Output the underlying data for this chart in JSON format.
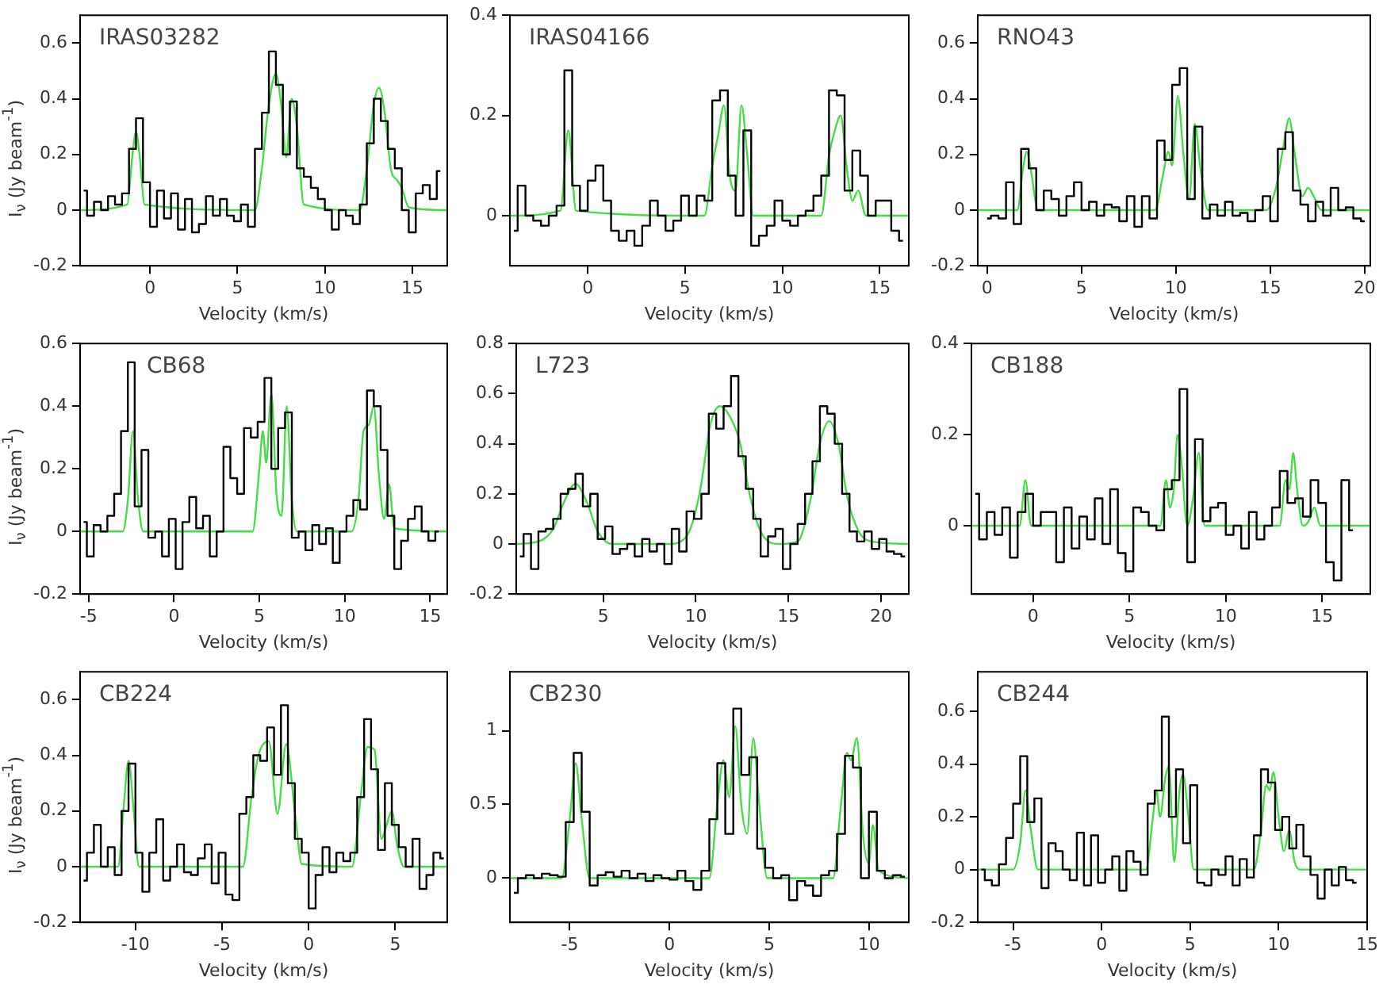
{
  "chart_data": [
    {
      "type": "step",
      "title": "IRAS03282",
      "xlabel": "Velocity (km/s)",
      "ylabel": "I$_{ν}$ (Jy beam$^{-1}$)",
      "xlim": [
        -4,
        17
      ],
      "xticks": [
        0,
        5,
        10,
        15
      ],
      "ylim": [
        -0.2,
        0.7
      ],
      "yticks": [
        -0.2,
        0,
        0.2,
        0.4,
        0.6
      ],
      "series": [
        {
          "type": "step",
          "color": "#000000",
          "x": [
            -3.8,
            -3.4,
            -3.0,
            -2.6,
            -2.2,
            -1.8,
            -1.4,
            -1.0,
            -0.6,
            -0.2,
            0.2,
            0.6,
            1.0,
            1.4,
            1.8,
            2.2,
            2.6,
            3.0,
            3.4,
            3.8,
            4.2,
            4.6,
            5.0,
            5.4,
            5.8,
            6.2,
            6.6,
            7.0,
            7.4,
            7.8,
            8.2,
            8.6,
            9.0,
            9.4,
            9.8,
            10.2,
            10.6,
            11.0,
            11.4,
            11.8,
            12.2,
            12.6,
            13.0,
            13.4,
            13.8,
            14.2,
            14.6,
            15.0,
            15.4,
            15.8,
            16.2,
            16.6
          ],
          "values": [
            0.07,
            -0.02,
            0.03,
            0.0,
            0.05,
            0.02,
            0.06,
            0.22,
            0.33,
            0.1,
            -0.06,
            0.07,
            -0.03,
            0.06,
            -0.07,
            0.04,
            -0.08,
            -0.05,
            0.05,
            -0.02,
            0.04,
            -0.02,
            -0.04,
            0.02,
            -0.06,
            0.22,
            0.35,
            0.57,
            0.45,
            0.2,
            0.39,
            0.15,
            0.12,
            0.08,
            0.04,
            0.0,
            -0.07,
            0.0,
            -0.02,
            -0.05,
            0.02,
            0.24,
            0.4,
            0.32,
            0.22,
            0.15,
            0.0,
            -0.08,
            0.06,
            0.09,
            0.04,
            0.14
          ]
        },
        {
          "type": "line",
          "color": "#44dd44",
          "x": [
            -4,
            -1.3,
            -1.0,
            -0.8,
            -0.6,
            -0.3,
            6.0,
            6.4,
            6.8,
            7.2,
            7.5,
            7.8,
            8.1,
            8.4,
            8.8,
            12.0,
            12.4,
            12.8,
            13.1,
            13.4,
            13.8,
            14.1,
            14.4,
            14.8,
            17
          ],
          "values": [
            0,
            0.02,
            0.2,
            0.28,
            0.2,
            0.02,
            0.0,
            0.15,
            0.38,
            0.49,
            0.38,
            0.19,
            0.4,
            0.3,
            0.02,
            0.0,
            0.15,
            0.38,
            0.44,
            0.36,
            0.14,
            0.11,
            0.08,
            0.01,
            0
          ]
        }
      ]
    },
    {
      "type": "step",
      "title": "IRAS04166",
      "xlabel": "Velocity (km/s)",
      "xlim": [
        -4,
        16.5
      ],
      "xticks": [
        0,
        5,
        10,
        15
      ],
      "ylim": [
        -0.1,
        0.4
      ],
      "yticks": [
        0,
        0.2,
        0.4
      ],
      "series": [
        {
          "type": "step",
          "color": "#000000",
          "x": [
            -3.8,
            -3.4,
            -3.0,
            -2.6,
            -2.2,
            -1.8,
            -1.4,
            -1.0,
            -0.6,
            -0.2,
            0.2,
            0.6,
            1.0,
            1.4,
            1.8,
            2.2,
            2.6,
            3.0,
            3.4,
            3.8,
            4.2,
            4.6,
            5.0,
            5.4,
            5.8,
            6.2,
            6.6,
            7.0,
            7.4,
            7.8,
            8.2,
            8.6,
            9.0,
            9.4,
            9.8,
            10.2,
            10.6,
            11.0,
            11.4,
            11.8,
            12.2,
            12.6,
            13.0,
            13.4,
            13.8,
            14.2,
            14.6,
            15.0,
            15.4,
            15.8,
            16.2
          ],
          "values": [
            -0.03,
            0.06,
            0.0,
            -0.01,
            -0.02,
            0.0,
            0.02,
            0.29,
            0.06,
            0.01,
            0.07,
            0.1,
            0.03,
            -0.03,
            -0.05,
            -0.03,
            -0.06,
            -0.02,
            0.03,
            0.0,
            -0.03,
            -0.01,
            0.04,
            0.0,
            0.04,
            0.03,
            0.23,
            0.25,
            0.08,
            0.0,
            0.17,
            -0.06,
            -0.04,
            -0.02,
            0.03,
            -0.01,
            -0.02,
            0.0,
            0.01,
            0.04,
            0.08,
            0.25,
            0.24,
            0.05,
            0.13,
            0.08,
            0.0,
            0.03,
            0.03,
            -0.03,
            -0.05
          ]
        },
        {
          "type": "line",
          "color": "#44dd44",
          "x": [
            -4,
            -1.4,
            -1.0,
            -0.6,
            6.0,
            6.4,
            6.7,
            7.0,
            7.3,
            7.6,
            7.9,
            8.2,
            8.5,
            12.0,
            12.4,
            12.7,
            13.0,
            13.3,
            13.6,
            13.9,
            14.3,
            16.5
          ],
          "values": [
            0,
            0.01,
            0.17,
            0.01,
            0.0,
            0.1,
            0.16,
            0.22,
            0.08,
            0.05,
            0.22,
            0.12,
            0.0,
            0.0,
            0.12,
            0.17,
            0.2,
            0.1,
            0.03,
            0.05,
            0.0,
            0
          ]
        }
      ]
    },
    {
      "type": "step",
      "title": "RNO43",
      "xlabel": "Velocity (km/s)",
      "xlim": [
        -0.5,
        20.3
      ],
      "xticks": [
        0,
        5,
        10,
        15,
        20
      ],
      "ylim": [
        -0.2,
        0.7
      ],
      "yticks": [
        -0.2,
        0,
        0.2,
        0.4,
        0.6
      ],
      "series": [
        {
          "type": "step",
          "color": "#000000",
          "x": [
            0,
            0.4,
            0.8,
            1.2,
            1.6,
            2.0,
            2.4,
            2.8,
            3.2,
            3.6,
            4.0,
            4.4,
            4.8,
            5.2,
            5.6,
            6.0,
            6.4,
            6.8,
            7.2,
            7.6,
            8.0,
            8.4,
            8.8,
            9.2,
            9.6,
            10.0,
            10.4,
            10.8,
            11.2,
            11.6,
            12.0,
            12.4,
            12.8,
            13.2,
            13.6,
            14.0,
            14.4,
            14.8,
            15.2,
            15.6,
            16.0,
            16.4,
            16.8,
            17.2,
            17.6,
            18.0,
            18.4,
            18.8,
            19.2,
            19.6,
            20.0
          ],
          "values": [
            -0.03,
            -0.02,
            -0.03,
            0.1,
            -0.05,
            0.22,
            0.15,
            0.0,
            0.07,
            0.04,
            -0.02,
            0.05,
            0.1,
            0.0,
            0.03,
            -0.02,
            0.02,
            0.01,
            -0.04,
            0.05,
            -0.06,
            0.05,
            -0.03,
            0.25,
            0.18,
            0.45,
            0.51,
            0.04,
            0.3,
            -0.03,
            0.02,
            -0.02,
            0.03,
            -0.02,
            -0.01,
            -0.04,
            0.0,
            0.05,
            -0.04,
            0.22,
            0.28,
            0.07,
            0.02,
            -0.04,
            0.03,
            -0.02,
            0.08,
            0.0,
            0.01,
            -0.03,
            -0.04
          ]
        },
        {
          "type": "line",
          "color": "#44dd44",
          "x": [
            -0.5,
            1.6,
            1.9,
            2.1,
            2.3,
            2.7,
            8.9,
            9.3,
            9.6,
            9.8,
            10.1,
            10.4,
            10.7,
            11.0,
            11.3,
            11.7,
            14.8,
            15.3,
            15.7,
            16.0,
            16.3,
            16.7,
            17.0,
            17.3,
            17.7,
            20.3
          ],
          "values": [
            0,
            0,
            0.15,
            0.21,
            0.15,
            0,
            0,
            0.12,
            0.21,
            0.16,
            0.41,
            0.2,
            0.04,
            0.31,
            0.15,
            0,
            0,
            0.08,
            0.23,
            0.33,
            0.2,
            0.05,
            0.08,
            0.05,
            0,
            0
          ]
        }
      ]
    },
    {
      "type": "step",
      "title": "CB68",
      "xlabel": "Velocity (km/s)",
      "ylabel": "I$_{ν}$ (Jy beam$^{-1}$)",
      "xlim": [
        -5.5,
        16
      ],
      "xticks": [
        -5,
        0,
        5,
        10,
        15
      ],
      "ylim": [
        -0.2,
        0.6
      ],
      "yticks": [
        -0.2,
        0,
        0.2,
        0.4,
        0.6
      ],
      "series": [
        {
          "type": "step",
          "color": "#000000",
          "x": [
            -5.3,
            -4.9,
            -4.5,
            -4.1,
            -3.7,
            -3.3,
            -2.9,
            -2.5,
            -2.1,
            -1.7,
            -1.3,
            -0.9,
            -0.5,
            -0.1,
            0.3,
            0.7,
            1.1,
            1.5,
            1.9,
            2.3,
            2.7,
            3.1,
            3.5,
            3.9,
            4.3,
            4.7,
            5.1,
            5.5,
            5.9,
            6.3,
            6.7,
            7.1,
            7.5,
            7.9,
            8.3,
            8.7,
            9.1,
            9.5,
            9.9,
            10.3,
            10.7,
            11.1,
            11.5,
            11.9,
            12.3,
            12.7,
            13.1,
            13.5,
            13.9,
            14.3,
            14.7,
            15.1,
            15.5
          ],
          "values": [
            0.03,
            -0.08,
            0.02,
            0.0,
            0.05,
            0.12,
            0.32,
            0.54,
            0.08,
            0.26,
            -0.02,
            0.0,
            -0.08,
            0.04,
            -0.12,
            0.03,
            0.11,
            0.01,
            0.05,
            -0.08,
            0.0,
            0.27,
            0.17,
            0.12,
            0.33,
            0.3,
            0.35,
            0.49,
            0.2,
            0.33,
            0.38,
            -0.02,
            0.0,
            -0.06,
            0.02,
            -0.04,
            0.01,
            -0.1,
            0.0,
            0.05,
            0.1,
            0.07,
            0.45,
            0.4,
            0.26,
            0.05,
            -0.12,
            -0.03,
            0.04,
            0.08,
            0.0,
            -0.03,
            0.0
          ]
        },
        {
          "type": "line",
          "color": "#44dd44",
          "x": [
            -5.5,
            -3.0,
            -2.7,
            -2.4,
            -2.1,
            -1.8,
            4.6,
            5.0,
            5.2,
            5.4,
            5.7,
            6.0,
            6.3,
            6.6,
            6.9,
            7.2,
            10.4,
            10.8,
            11.1,
            11.4,
            11.7,
            12.0,
            12.3,
            12.6,
            12.9,
            16
          ],
          "values": [
            0,
            0,
            0.1,
            0.32,
            0.1,
            0,
            0,
            0.2,
            0.32,
            0.22,
            0.44,
            0.12,
            0.05,
            0.4,
            0.1,
            0,
            0,
            0.1,
            0.32,
            0.34,
            0.4,
            0.18,
            0.04,
            0.15,
            0.01,
            0
          ]
        }
      ]
    },
    {
      "type": "step",
      "title": "L723",
      "xlabel": "Velocity (km/s)",
      "xlim": [
        0.3,
        21.5
      ],
      "xticks": [
        5,
        10,
        15,
        20
      ],
      "ylim": [
        -0.2,
        0.8
      ],
      "yticks": [
        -0.2,
        0,
        0.2,
        0.4,
        0.6,
        0.8
      ],
      "series": [
        {
          "type": "step",
          "color": "#000000",
          "x": [
            0.5,
            0.9,
            1.3,
            1.7,
            2.1,
            2.5,
            2.9,
            3.3,
            3.7,
            4.1,
            4.5,
            4.9,
            5.3,
            5.7,
            6.1,
            6.5,
            6.9,
            7.3,
            7.7,
            8.1,
            8.5,
            8.9,
            9.3,
            9.7,
            10.1,
            10.5,
            10.9,
            11.3,
            11.7,
            12.1,
            12.5,
            12.9,
            13.3,
            13.7,
            14.1,
            14.5,
            14.9,
            15.3,
            15.7,
            16.1,
            16.5,
            16.9,
            17.3,
            17.7,
            18.1,
            18.5,
            18.9,
            19.3,
            19.7,
            20.1,
            20.5,
            20.9,
            21.3
          ],
          "values": [
            -0.05,
            0.04,
            -0.1,
            0.05,
            0.06,
            0.1,
            0.2,
            0.22,
            0.28,
            0.15,
            0.2,
            0.02,
            0.07,
            -0.04,
            -0.02,
            0.0,
            -0.05,
            0.02,
            -0.03,
            0.0,
            -0.08,
            0.06,
            -0.03,
            0.13,
            0.1,
            0.2,
            0.52,
            0.46,
            0.55,
            0.67,
            0.35,
            0.22,
            0.1,
            -0.05,
            0.03,
            0.06,
            -0.1,
            0.0,
            0.08,
            0.2,
            0.33,
            0.55,
            0.52,
            0.4,
            0.2,
            0.05,
            0.01,
            0.05,
            -0.02,
            0.02,
            -0.03,
            -0.04,
            -0.05
          ]
        },
        {
          "type": "line",
          "color": "#44dd44",
          "x": [
            0.3,
            1.5,
            2.3,
            2.9,
            3.5,
            4.1,
            4.7,
            5.5,
            8.5,
            9.5,
            10.2,
            10.8,
            11.3,
            11.9,
            12.4,
            12.9,
            13.5,
            14.5,
            15.5,
            16.2,
            16.7,
            17.2,
            17.7,
            18.2,
            18.8,
            19.5,
            21.5
          ],
          "values": [
            0,
            0.01,
            0.06,
            0.17,
            0.24,
            0.17,
            0.05,
            0,
            0,
            0.03,
            0.2,
            0.48,
            0.55,
            0.5,
            0.4,
            0.2,
            0.05,
            0,
            0.01,
            0.18,
            0.4,
            0.49,
            0.4,
            0.18,
            0.05,
            0.01,
            0
          ]
        }
      ]
    },
    {
      "type": "step",
      "title": "CB188",
      "xlabel": "Velocity (km/s)",
      "xlim": [
        -3.2,
        17.5
      ],
      "xticks": [
        0,
        5,
        10,
        15
      ],
      "ylim": [
        -0.15,
        0.4
      ],
      "yticks": [
        0,
        0.2,
        0.4
      ],
      "series": [
        {
          "type": "step",
          "color": "#000000",
          "x": [
            -3.0,
            -2.6,
            -2.2,
            -1.8,
            -1.4,
            -1.0,
            -0.6,
            -0.2,
            0.2,
            0.6,
            1.0,
            1.4,
            1.8,
            2.2,
            2.6,
            3.0,
            3.4,
            3.8,
            4.2,
            4.6,
            5.0,
            5.4,
            5.8,
            6.2,
            6.6,
            7.0,
            7.4,
            7.8,
            8.2,
            8.6,
            9.0,
            9.4,
            9.8,
            10.2,
            10.6,
            11.0,
            11.4,
            11.8,
            12.2,
            12.6,
            13.0,
            13.4,
            13.8,
            14.2,
            14.6,
            15.0,
            15.4,
            15.8,
            16.2,
            16.6
          ],
          "values": [
            0.07,
            -0.03,
            0.03,
            -0.02,
            0.04,
            -0.07,
            0.03,
            0.07,
            0.0,
            0.03,
            0.03,
            -0.08,
            0.04,
            -0.05,
            0.02,
            -0.03,
            0.06,
            -0.04,
            0.08,
            -0.06,
            -0.1,
            0.04,
            0.03,
            0.0,
            -0.01,
            0.08,
            0.1,
            0.3,
            -0.08,
            0.19,
            0.01,
            0.04,
            0.05,
            -0.02,
            0.0,
            -0.05,
            0.03,
            -0.03,
            0.0,
            0.04,
            0.12,
            0.05,
            0.06,
            0.02,
            0.1,
            0.05,
            -0.08,
            -0.12,
            0.1,
            -0.01
          ]
        },
        {
          "type": "line",
          "color": "#44dd44",
          "x": [
            -3.2,
            -0.7,
            -0.4,
            -0.1,
            6.6,
            6.9,
            7.1,
            7.3,
            7.5,
            7.7,
            8.0,
            8.3,
            8.6,
            8.9,
            12.8,
            13.1,
            13.3,
            13.5,
            13.7,
            14.0,
            14.3,
            14.6,
            14.9,
            17.5
          ],
          "values": [
            0,
            0,
            0.1,
            0,
            0,
            0.1,
            0.04,
            0.08,
            0.2,
            0.14,
            0.0,
            0.06,
            0.16,
            0,
            0,
            0.1,
            0.08,
            0.16,
            0.08,
            0.0,
            0.01,
            0.04,
            0,
            0
          ]
        }
      ]
    },
    {
      "type": "step",
      "title": "CB224",
      "xlabel": "Velocity (km/s)",
      "ylabel": "I$_{ν}$ (Jy beam$^{-1}$)",
      "xlim": [
        -13.2,
        8
      ],
      "xticks": [
        -10,
        -5,
        0,
        5
      ],
      "ylim": [
        -0.2,
        0.7
      ],
      "yticks": [
        -0.2,
        0,
        0.2,
        0.4,
        0.6
      ],
      "series": [
        {
          "type": "step",
          "color": "#000000",
          "x": [
            -13.0,
            -12.6,
            -12.2,
            -11.8,
            -11.4,
            -11.0,
            -10.6,
            -10.2,
            -9.8,
            -9.4,
            -9.0,
            -8.6,
            -8.2,
            -7.8,
            -7.4,
            -7.0,
            -6.6,
            -6.2,
            -5.8,
            -5.4,
            -5.0,
            -4.6,
            -4.2,
            -3.8,
            -3.4,
            -3.0,
            -2.6,
            -2.2,
            -1.8,
            -1.4,
            -1.0,
            -0.6,
            -0.2,
            0.2,
            0.6,
            1.0,
            1.4,
            1.8,
            2.2,
            2.6,
            3.0,
            3.4,
            3.8,
            4.2,
            4.6,
            5.0,
            5.4,
            5.8,
            6.2,
            6.6,
            7.0,
            7.4,
            7.8
          ],
          "values": [
            -0.05,
            0.05,
            0.15,
            0.0,
            0.07,
            -0.03,
            0.2,
            0.37,
            0.05,
            -0.09,
            0.05,
            0.17,
            -0.05,
            0.0,
            0.08,
            -0.02,
            -0.03,
            0.03,
            0.08,
            -0.06,
            0.05,
            -0.1,
            -0.12,
            0.19,
            0.25,
            0.4,
            0.38,
            0.5,
            0.33,
            0.58,
            0.3,
            0.1,
            0.05,
            -0.15,
            -0.03,
            0.07,
            -0.02,
            0.05,
            0.02,
            0.05,
            0.25,
            0.53,
            0.35,
            0.06,
            0.3,
            0.15,
            0.07,
            0.0,
            0.1,
            -0.08,
            -0.03,
            0.05,
            0.03
          ]
        },
        {
          "type": "line",
          "color": "#44dd44",
          "x": [
            -13.2,
            -11.0,
            -10.7,
            -10.4,
            -10.1,
            -9.8,
            -3.8,
            -3.3,
            -2.9,
            -2.3,
            -1.8,
            -1.3,
            -0.8,
            -0.4,
            2.5,
            3.0,
            3.4,
            3.8,
            4.2,
            4.5,
            4.8,
            5.1,
            5.5,
            8
          ],
          "values": [
            0,
            0,
            0.2,
            0.38,
            0.2,
            0,
            0,
            0.25,
            0.4,
            0.45,
            0.19,
            0.44,
            0.2,
            0.01,
            0.0,
            0.25,
            0.43,
            0.42,
            0.1,
            0.15,
            0.2,
            0.08,
            0.0,
            0
          ]
        }
      ]
    },
    {
      "type": "step",
      "title": "CB230",
      "xlabel": "Velocity (km/s)",
      "xlim": [
        -8,
        12
      ],
      "xticks": [
        -5,
        0,
        5,
        10
      ],
      "ylim": [
        -0.3,
        1.4
      ],
      "yticks": [
        0,
        0.5,
        1
      ],
      "series": [
        {
          "type": "step",
          "color": "#000000",
          "x": [
            -7.8,
            -7.4,
            -7.0,
            -6.6,
            -6.2,
            -5.8,
            -5.4,
            -5.0,
            -4.6,
            -4.2,
            -3.8,
            -3.4,
            -3.0,
            -2.6,
            -2.2,
            -1.8,
            -1.4,
            -1.0,
            -0.6,
            -0.2,
            0.2,
            0.6,
            1.0,
            1.4,
            1.8,
            2.2,
            2.6,
            3.0,
            3.4,
            3.8,
            4.2,
            4.6,
            5.0,
            5.4,
            5.8,
            6.2,
            6.6,
            7.0,
            7.4,
            7.8,
            8.2,
            8.6,
            9.0,
            9.4,
            9.8,
            10.2,
            10.6,
            11.0,
            11.4,
            11.8
          ],
          "values": [
            -0.1,
            0.0,
            0.02,
            0.0,
            0.03,
            0.02,
            0.01,
            0.38,
            0.85,
            0.45,
            -0.05,
            0.02,
            0.04,
            0.01,
            0.05,
            0.0,
            0.03,
            -0.02,
            0.02,
            0.0,
            -0.01,
            0.05,
            -0.02,
            -0.08,
            0.05,
            0.4,
            0.78,
            0.3,
            1.15,
            0.7,
            0.82,
            0.2,
            0.07,
            0.0,
            0.02,
            -0.15,
            -0.02,
            -0.05,
            -0.12,
            0.02,
            0.05,
            0.3,
            0.83,
            0.75,
            0.0,
            0.45,
            0.05,
            0.0,
            0.02,
            0.01
          ]
        },
        {
          "type": "line",
          "color": "#44dd44",
          "x": [
            -8,
            -5.4,
            -5.0,
            -4.7,
            -4.4,
            -4.0,
            2.0,
            2.4,
            2.7,
            3.0,
            3.3,
            3.6,
            3.9,
            4.2,
            4.5,
            4.9,
            8.2,
            8.6,
            8.9,
            9.1,
            9.4,
            9.7,
            10.0,
            10.2,
            10.5,
            12
          ],
          "values": [
            0,
            0,
            0.4,
            0.78,
            0.4,
            0,
            0,
            0.5,
            0.8,
            0.55,
            1.03,
            0.5,
            0.3,
            0.95,
            0.5,
            0,
            0,
            0.5,
            0.85,
            0.8,
            0.95,
            0.3,
            0.1,
            0.36,
            0.05,
            0
          ]
        }
      ]
    },
    {
      "type": "step",
      "title": "CB244",
      "xlabel": "Velocity (km/s)",
      "xlim": [
        -7,
        15
      ],
      "xticks": [
        -5,
        0,
        5,
        10,
        15
      ],
      "ylim": [
        -0.2,
        0.75
      ],
      "yticks": [
        -0.2,
        0,
        0.2,
        0.4,
        0.6
      ],
      "series": [
        {
          "type": "step",
          "color": "#000000",
          "x": [
            -6.8,
            -6.4,
            -6.0,
            -5.6,
            -5.2,
            -4.8,
            -4.4,
            -4.0,
            -3.6,
            -3.2,
            -2.8,
            -2.4,
            -2.0,
            -1.6,
            -1.2,
            -0.8,
            -0.4,
            0.0,
            0.4,
            0.8,
            1.2,
            1.6,
            2.0,
            2.4,
            2.8,
            3.2,
            3.6,
            4.0,
            4.4,
            4.8,
            5.2,
            5.6,
            6.0,
            6.4,
            6.8,
            7.2,
            7.6,
            8.0,
            8.4,
            8.8,
            9.2,
            9.6,
            10.0,
            10.4,
            10.8,
            11.2,
            11.6,
            12.0,
            12.4,
            12.8,
            13.2,
            13.6,
            14.0,
            14.4
          ],
          "values": [
            0.0,
            -0.04,
            -0.06,
            0.02,
            0.12,
            0.25,
            0.43,
            0.18,
            0.27,
            -0.07,
            0.1,
            0.07,
            0.0,
            -0.04,
            0.14,
            -0.06,
            0.13,
            -0.05,
            0.0,
            0.05,
            -0.08,
            0.07,
            0.03,
            -0.02,
            0.25,
            0.3,
            0.58,
            0.2,
            0.38,
            0.1,
            0.32,
            -0.05,
            -0.06,
            0.0,
            -0.02,
            0.05,
            -0.06,
            0.04,
            -0.03,
            0.13,
            0.38,
            0.33,
            0.15,
            0.2,
            0.08,
            0.17,
            0.05,
            -0.02,
            -0.11,
            0.0,
            -0.06,
            0.01,
            -0.04,
            -0.05
          ]
        },
        {
          "type": "line",
          "color": "#44dd44",
          "x": [
            -7,
            -5.0,
            -4.6,
            -4.3,
            -4.0,
            -3.6,
            2.5,
            2.9,
            3.1,
            3.3,
            3.6,
            3.8,
            4.1,
            4.4,
            4.6,
            4.9,
            5.2,
            8.6,
            9.0,
            9.3,
            9.5,
            9.7,
            10.0,
            10.3,
            10.6,
            10.9,
            11.2,
            15
          ],
          "values": [
            0,
            0,
            0.1,
            0.3,
            0.15,
            0,
            0,
            0.2,
            0.3,
            0.2,
            0.35,
            0.39,
            0.03,
            0.3,
            0.36,
            0.2,
            0,
            0,
            0.15,
            0.32,
            0.3,
            0.37,
            0.2,
            0.07,
            0.15,
            0.03,
            0,
            0
          ]
        }
      ]
    }
  ]
}
